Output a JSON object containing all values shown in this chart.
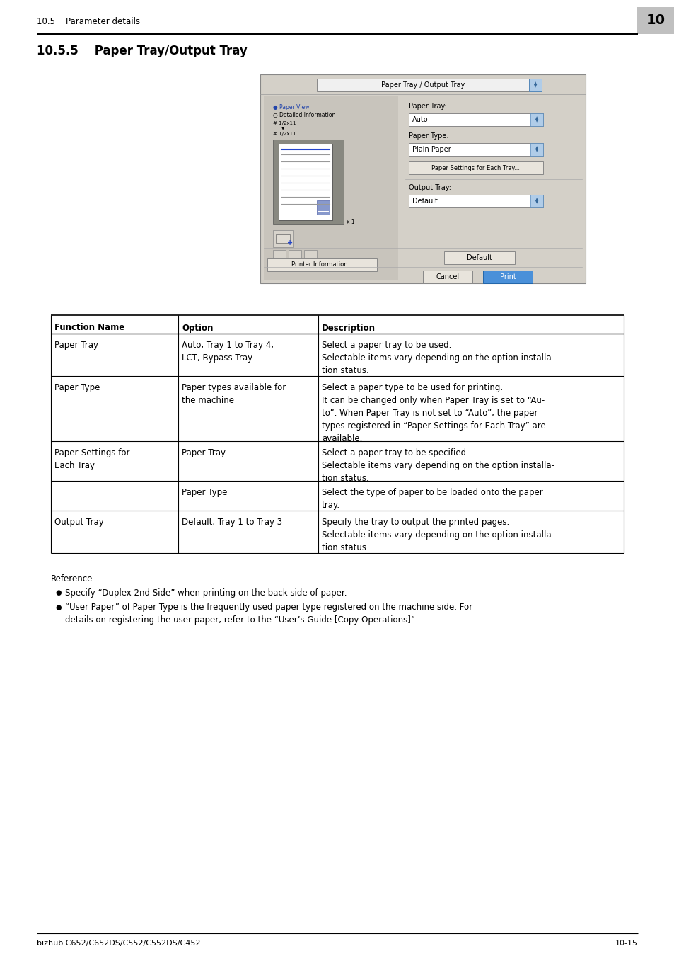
{
  "page_bg": "#ffffff",
  "header_text": "10.5    Parameter details",
  "header_num": "10",
  "section_title": "10.5.5    Paper Tray/Output Tray",
  "footer_left": "bizhub C652/C652DS/C552/C552DS/C452",
  "footer_right": "10-15",
  "table_header": [
    "Function Name",
    "Option",
    "Description"
  ],
  "reference_title": "Reference",
  "bullets": [
    "Specify “Duplex 2nd Side” when printing on the back side of paper.",
    "“User Paper” of Paper Type is the frequently used paper type registered on the machine side. For\ndetails on registering the user paper, refer to the “User’s Guide [Copy Operations]”."
  ],
  "gray_box_color": "#c0c0c0",
  "dialog_bg": "#d4d0c8",
  "dialog_title_bg": "#d4d0c8",
  "white": "#ffffff",
  "light_gray": "#e8e8e0",
  "blue_btn": "#4a90d9"
}
